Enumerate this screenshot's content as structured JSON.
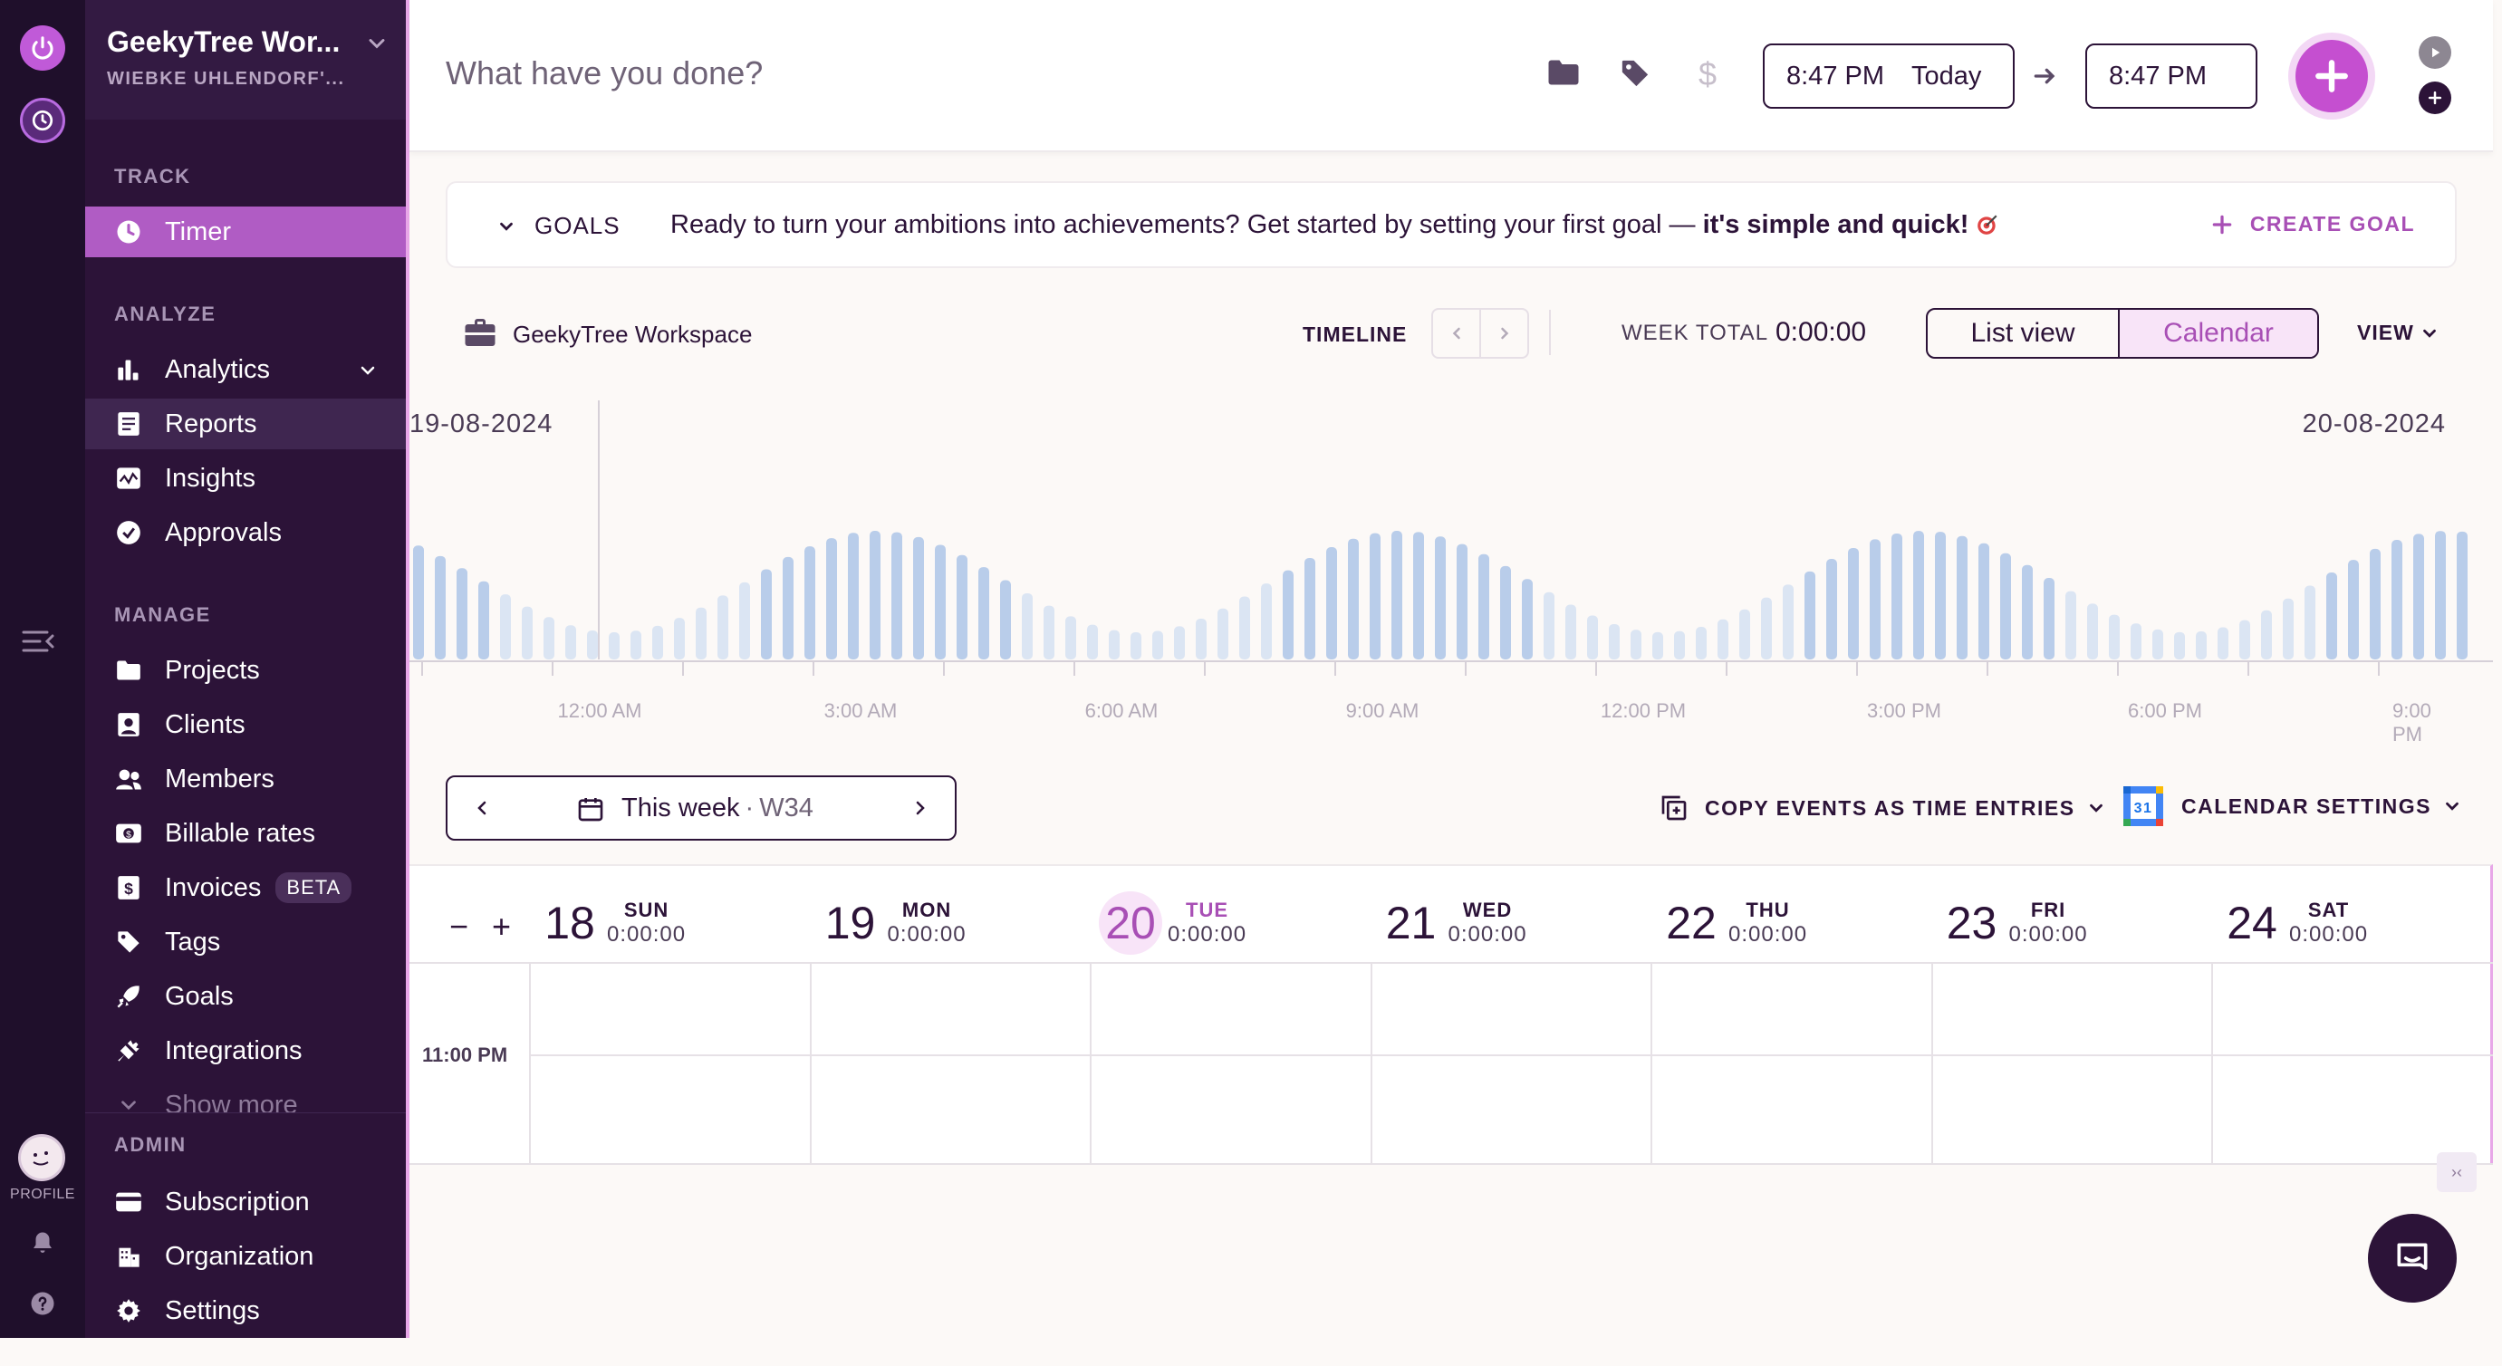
{
  "workspace": {
    "name": "GeekyTree Wor...",
    "owner": "WIEBKE UHLENDORF'..."
  },
  "rail": {
    "profile_label": "PROFILE"
  },
  "nav": {
    "track_label": "TRACK",
    "timer": "Timer",
    "analyze_label": "ANALYZE",
    "analytics": "Analytics",
    "reports": "Reports",
    "insights": "Insights",
    "approvals": "Approvals",
    "manage_label": "MANAGE",
    "projects": "Projects",
    "clients": "Clients",
    "members": "Members",
    "billable_rates": "Billable rates",
    "invoices": "Invoices",
    "invoices_badge": "BETA",
    "tags": "Tags",
    "goals": "Goals",
    "integrations": "Integrations",
    "show_more": "Show more",
    "admin_label": "ADMIN",
    "subscription": "Subscription",
    "organization": "Organization",
    "settings": "Settings"
  },
  "topbar": {
    "description_placeholder": "What have you done?",
    "start_time": "8:47 PM",
    "start_day": "Today",
    "end_time": "8:47 PM"
  },
  "goals": {
    "toggle_label": "GOALS",
    "message": "Ready to turn your ambitions into achievements? Get started by setting your first goal —",
    "message_bold": "it's simple and quick!",
    "create_label": "CREATE GOAL"
  },
  "timeline_header": {
    "workspace": "GeekyTree Workspace",
    "timeline_label": "TIMELINE",
    "week_total_label": "WEEK TOTAL",
    "week_total_value": "0:00:00",
    "list_view": "List view",
    "calendar_view": "Calendar",
    "view_label": "VIEW"
  },
  "timeline": {
    "date_left": "19-08-2024",
    "date_right": "20-08-2024",
    "ticks": [
      "12:00 AM",
      "3:00 AM",
      "6:00 AM",
      "9:00 AM",
      "12:00 PM",
      "3:00 PM",
      "6:00 PM",
      "9:00 PM"
    ]
  },
  "week_nav": {
    "label": "This week",
    "week": "W34"
  },
  "actions": {
    "copy_events": "COPY EVENTS AS TIME ENTRIES",
    "calendar_settings": "CALENDAR SETTINGS",
    "calendar_icon_day": "31"
  },
  "calendar": {
    "zoom_out": "−",
    "zoom_in": "+",
    "days": [
      {
        "num": "18",
        "name": "SUN",
        "total": "0:00:00"
      },
      {
        "num": "19",
        "name": "MON",
        "total": "0:00:00"
      },
      {
        "num": "20",
        "name": "TUE",
        "total": "0:00:00"
      },
      {
        "num": "21",
        "name": "WED",
        "total": "0:00:00"
      },
      {
        "num": "22",
        "name": "THU",
        "total": "0:00:00"
      },
      {
        "num": "23",
        "name": "FRI",
        "total": "0:00:00"
      },
      {
        "num": "24",
        "name": "SAT",
        "total": "0:00:00"
      }
    ],
    "hour_label": "11:00 PM"
  },
  "colors": {
    "accent": "#a84fb5",
    "sidebar_bg": "#2c1338",
    "rail_bg": "#1f0f2b",
    "bar_color": "#b9cdea"
  }
}
